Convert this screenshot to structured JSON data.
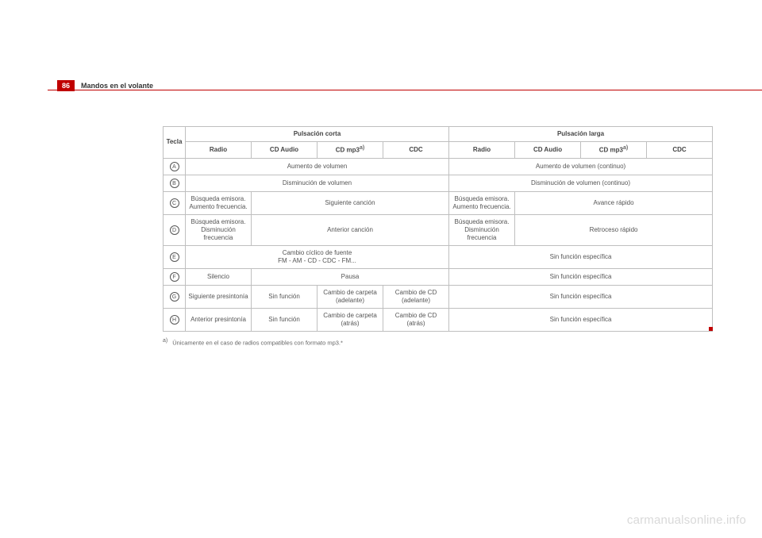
{
  "pageNumber": "86",
  "headerTitle": "Mandos en el volante",
  "watermark": "carmanualsonline.info",
  "footnoteMark": "a)",
  "footnoteText": "Únicamente en el caso de radios compatibles con formato mp3.*",
  "thead": {
    "tecla": "Tecla",
    "shortPress": "Pulsación corta",
    "longPress": "Pulsación larga",
    "cols": {
      "radio": "Radio",
      "cdAudio": "CD Audio",
      "cdMp3": "CD mp3",
      "cdc": "CDC"
    }
  },
  "rows": {
    "A": {
      "key": "A",
      "short": "Aumento de volumen",
      "long": "Aumento de volumen (continuo)"
    },
    "B": {
      "key": "B",
      "short": "Disminución de volumen",
      "long": "Disminución de volumen (continuo)"
    },
    "C": {
      "key": "C",
      "shortRadio": "Búsqueda emisora. Aumento frecuencia.",
      "shortRest": "Siguiente canción",
      "longRadio": "Búsqueda emisora. Aumento frecuencia.",
      "longRest": "Avance rápido"
    },
    "D": {
      "key": "D",
      "shortRadio": "Búsqueda emisora. Disminución frecuencia",
      "shortRest": "Anterior canción",
      "longRadio": "Búsqueda emisora. Disminución frecuencia",
      "longRest": "Retroceso rápido"
    },
    "E": {
      "key": "E",
      "shortLine1": "Cambio cíclico de fuente",
      "shortLine2": "FM - AM - CD - CDC - FM...",
      "long": "Sin función específica"
    },
    "F": {
      "key": "F",
      "shortRadio": "Silencio",
      "shortRest": "Pausa",
      "long": "Sin función específica"
    },
    "G": {
      "key": "G",
      "shortRadio": "Siguiente presintonía",
      "shortCdAudio": "Sin función",
      "shortCdMp3": "Cambio de carpeta (adelante)",
      "shortCdc": "Cambio de CD (adelante)",
      "long": "Sin función específica"
    },
    "H": {
      "key": "H",
      "shortRadio": "Anterior presintonía",
      "shortCdAudio": "Sin función",
      "shortCdMp3": "Cambio de carpeta (atrás)",
      "shortCdc": "Cambio de CD (atrás)",
      "long": "Sin función específica"
    }
  },
  "style": {
    "borderColor": "#bfbfbf",
    "textColor": "#555555",
    "accent": "#c00000",
    "background": "#ffffff"
  }
}
